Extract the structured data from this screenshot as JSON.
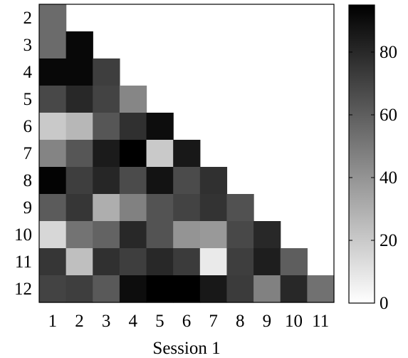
{
  "chart_data": {
    "type": "heatmap",
    "xlabel": "Session 1",
    "ylabel": "",
    "x_ticks": [
      "1",
      "2",
      "3",
      "4",
      "5",
      "6",
      "7",
      "8",
      "9",
      "10",
      "11"
    ],
    "y_ticks": [
      "2",
      "3",
      "4",
      "5",
      "6",
      "7",
      "8",
      "9",
      "10",
      "11",
      "12"
    ],
    "colorbar": {
      "min": 0,
      "max": 95,
      "ticks": [
        "0",
        "20",
        "40",
        "60",
        "80"
      ],
      "tick_values": [
        0,
        20,
        40,
        60,
        80
      ],
      "colormap": "gray reversed (white = low, black = high)"
    },
    "matrix": [
      [
        55
      ],
      [
        55,
        92
      ],
      [
        92,
        92,
        72
      ],
      [
        68,
        80,
        70,
        45
      ],
      [
        20,
        27,
        63,
        77,
        90
      ],
      [
        46,
        63,
        85,
        97,
        20,
        86
      ],
      [
        94,
        72,
        81,
        67,
        88,
        67,
        77
      ],
      [
        61,
        75,
        30,
        47,
        64,
        70,
        76,
        65
      ],
      [
        15,
        52,
        58,
        80,
        64,
        40,
        38,
        68,
        80
      ],
      [
        75,
        24,
        77,
        72,
        80,
        73,
        8,
        72,
        84,
        60
      ],
      [
        70,
        72,
        62,
        90,
        100,
        95,
        86,
        73,
        47,
        80,
        53
      ]
    ]
  }
}
